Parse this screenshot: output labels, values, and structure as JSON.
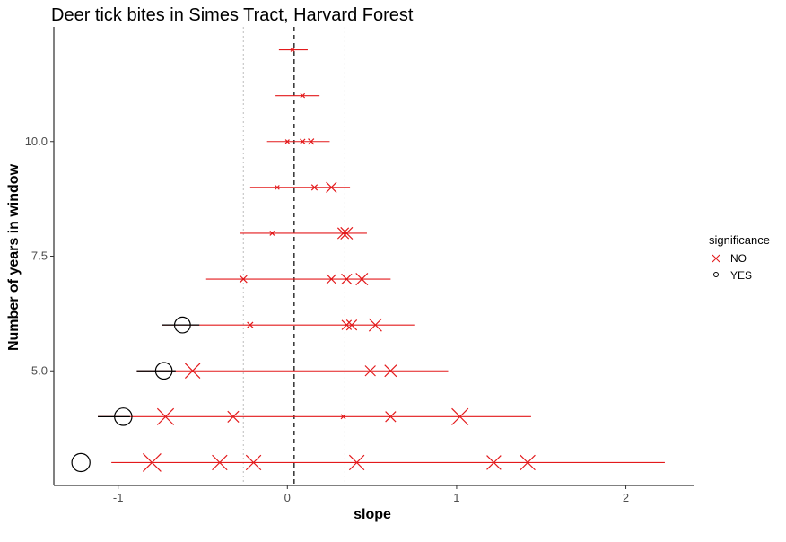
{
  "chart_data": {
    "type": "scatter",
    "title": "Deer tick bites in Simes Tract, Harvard Forest",
    "xlabel": "slope",
    "ylabel": "Number of years in window",
    "xlim": [
      -1.38,
      2.4
    ],
    "ylim": [
      2.5,
      12.5
    ],
    "x_ticks": [
      -1,
      0,
      1,
      2
    ],
    "x_tick_labels": [
      "-1",
      "0",
      "1",
      "2"
    ],
    "y_ticks": [
      5.0,
      7.5,
      10.0
    ],
    "y_tick_labels": [
      "5.0",
      "7.5",
      "10.0"
    ],
    "grid": false,
    "legend": {
      "title": "significance",
      "position": "right",
      "entries": [
        {
          "label": "NO",
          "symbol": "cross",
          "color": "#e31a1c"
        },
        {
          "label": "YES",
          "symbol": "circle",
          "color": "#000000"
        }
      ]
    },
    "reference_lines": {
      "mean_slope_dashed": 0.04,
      "dotted": [
        -0.26,
        0.34
      ]
    },
    "colors": {
      "NO": "#e31a1c",
      "YES": "#000000"
    },
    "series": [
      {
        "name": "NO",
        "points": [
          {
            "x": 0.03,
            "y": 12,
            "size": 0.05
          },
          {
            "x": 0.09,
            "y": 11,
            "size": 0.1
          },
          {
            "x": 0.0,
            "y": 10,
            "size": 0.08
          },
          {
            "x": 0.09,
            "y": 10,
            "size": 0.15
          },
          {
            "x": 0.14,
            "y": 10,
            "size": 0.2
          },
          {
            "x": -0.06,
            "y": 9,
            "size": 0.1
          },
          {
            "x": 0.16,
            "y": 9,
            "size": 0.2
          },
          {
            "x": 0.26,
            "y": 9,
            "size": 0.5
          },
          {
            "x": -0.09,
            "y": 8,
            "size": 0.12
          },
          {
            "x": 0.33,
            "y": 8,
            "size": 0.55
          },
          {
            "x": 0.35,
            "y": 8,
            "size": 0.6
          },
          {
            "x": -0.26,
            "y": 7,
            "size": 0.3
          },
          {
            "x": 0.26,
            "y": 7,
            "size": 0.45
          },
          {
            "x": 0.35,
            "y": 7,
            "size": 0.5
          },
          {
            "x": 0.44,
            "y": 7,
            "size": 0.6
          },
          {
            "x": -0.22,
            "y": 6,
            "size": 0.2
          },
          {
            "x": 0.35,
            "y": 6,
            "size": 0.45
          },
          {
            "x": 0.38,
            "y": 6,
            "size": 0.5
          },
          {
            "x": 0.52,
            "y": 6,
            "size": 0.65
          },
          {
            "x": -0.56,
            "y": 5,
            "size": 0.8
          },
          {
            "x": 0.49,
            "y": 5,
            "size": 0.5
          },
          {
            "x": 0.61,
            "y": 5,
            "size": 0.6
          },
          {
            "x": -0.72,
            "y": 4,
            "size": 0.9
          },
          {
            "x": -0.32,
            "y": 4,
            "size": 0.55
          },
          {
            "x": 0.33,
            "y": 4,
            "size": 0.12
          },
          {
            "x": 0.61,
            "y": 4,
            "size": 0.5
          },
          {
            "x": 1.02,
            "y": 4,
            "size": 0.9
          },
          {
            "x": -0.8,
            "y": 3,
            "size": 1.0
          },
          {
            "x": -0.4,
            "y": 3,
            "size": 0.8
          },
          {
            "x": -0.2,
            "y": 3,
            "size": 0.8
          },
          {
            "x": 0.41,
            "y": 3,
            "size": 0.8
          },
          {
            "x": 1.22,
            "y": 3,
            "size": 0.75
          },
          {
            "x": 1.42,
            "y": 3,
            "size": 0.8
          }
        ]
      },
      {
        "name": "YES",
        "points": [
          {
            "x": -0.62,
            "y": 6,
            "size": 0.8
          },
          {
            "x": -0.73,
            "y": 5,
            "size": 0.85
          },
          {
            "x": -0.97,
            "y": 4,
            "size": 0.9
          },
          {
            "x": -1.22,
            "y": 3,
            "size": 0.95
          }
        ]
      }
    ],
    "ranges": [
      {
        "y": 12,
        "xmin": -0.05,
        "xmax": 0.12,
        "color": "#e31a1c"
      },
      {
        "y": 11,
        "xmin": -0.07,
        "xmax": 0.19,
        "color": "#e31a1c"
      },
      {
        "y": 10,
        "xmin": -0.12,
        "xmax": 0.25,
        "color": "#e31a1c"
      },
      {
        "y": 9,
        "xmin": -0.22,
        "xmax": 0.37,
        "color": "#e31a1c"
      },
      {
        "y": 8,
        "xmin": -0.28,
        "xmax": 0.47,
        "color": "#e31a1c"
      },
      {
        "y": 7,
        "xmin": -0.48,
        "xmax": 0.61,
        "color": "#e31a1c"
      },
      {
        "y": 6,
        "xmin": -0.74,
        "xmax": 0.75,
        "color": "#e31a1c",
        "black_from": -0.74,
        "black_to": -0.52
      },
      {
        "y": 5,
        "xmin": -0.89,
        "xmax": 0.95,
        "color": "#e31a1c",
        "black_from": -0.89,
        "black_to": -0.66
      },
      {
        "y": 4,
        "xmin": -1.12,
        "xmax": 1.44,
        "color": "#e31a1c",
        "black_from": -1.12,
        "black_to": -0.93
      },
      {
        "y": 3,
        "xmin": -1.04,
        "xmax": 2.23,
        "color": "#e31a1c"
      }
    ]
  }
}
